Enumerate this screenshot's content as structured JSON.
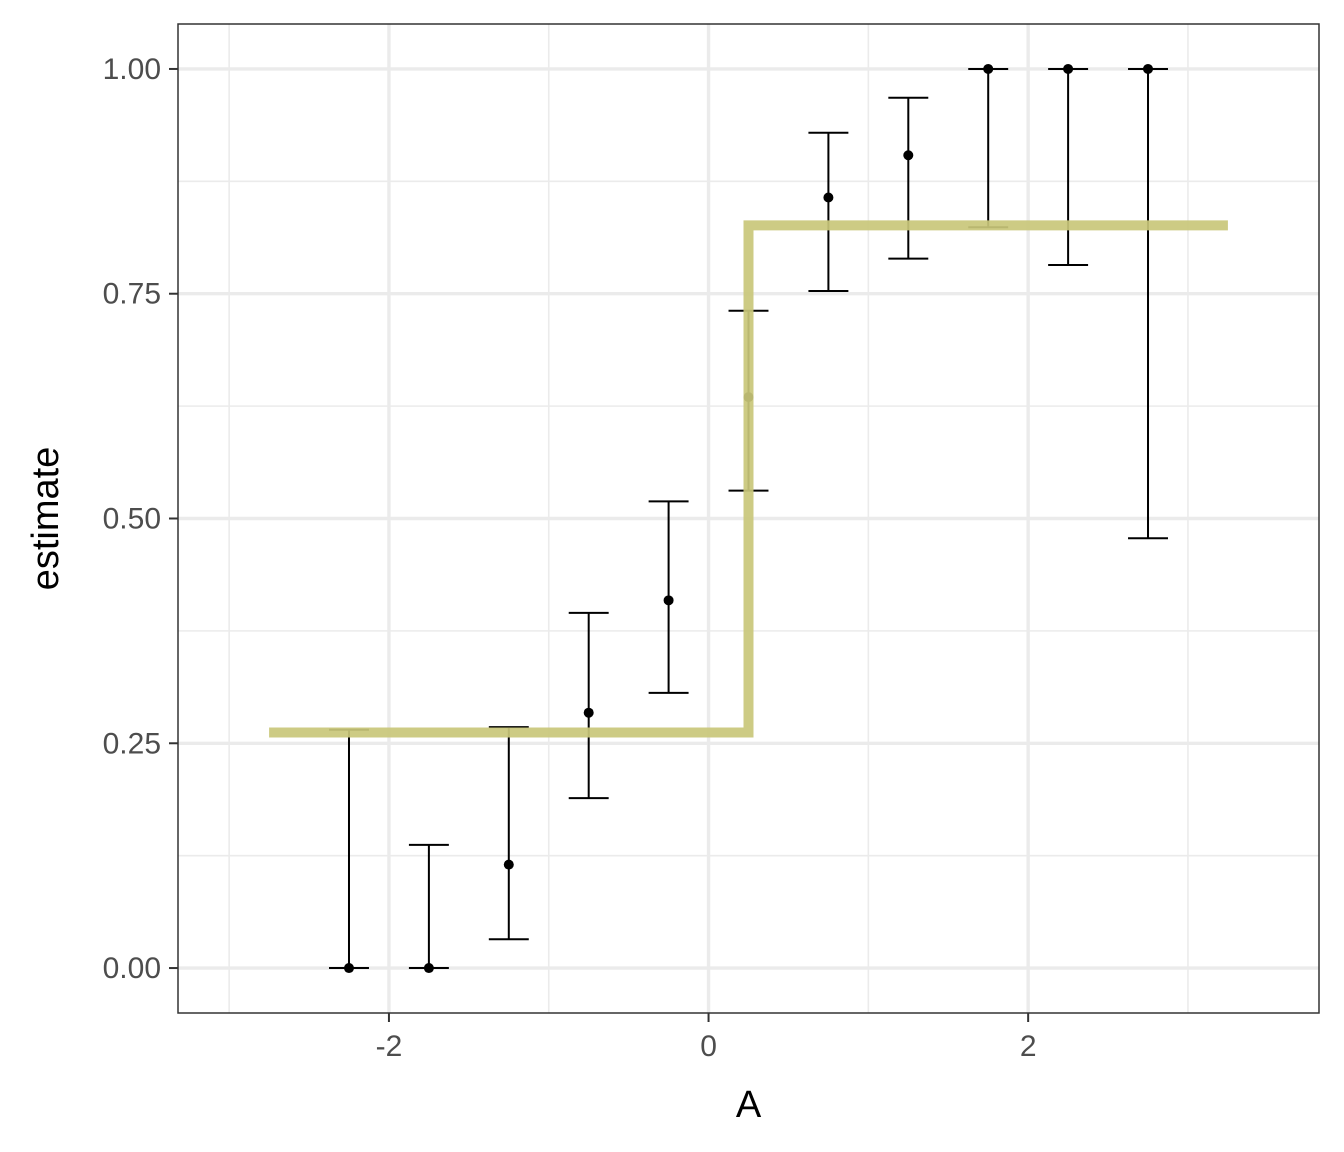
{
  "chart_data": {
    "type": "scatter",
    "title": "",
    "xlabel": "A",
    "ylabel": "estimate",
    "xlim": [
      -3.32,
      3.82
    ],
    "ylim": [
      -0.05,
      1.05
    ],
    "x_ticks": [
      -2,
      0,
      2
    ],
    "x_tick_labels": [
      "-2",
      "0",
      "2"
    ],
    "x_minor_ticks": [
      -3,
      -1,
      1,
      3
    ],
    "y_ticks": [
      0,
      0.25,
      0.5,
      0.75,
      1.0
    ],
    "y_tick_labels": [
      "0.00",
      "0.25",
      "0.50",
      "0.75",
      "1.00"
    ],
    "y_minor_ticks": [
      0.125,
      0.375,
      0.625,
      0.875
    ],
    "grid": true,
    "theme": "bw",
    "points": [
      {
        "x": -2.25,
        "y": 0.0,
        "ymin": 0.0,
        "ymax": 0.265
      },
      {
        "x": -1.75,
        "y": 0.0,
        "ymin": 0.0,
        "ymax": 0.137
      },
      {
        "x": -1.25,
        "y": 0.115,
        "ymin": 0.032,
        "ymax": 0.268
      },
      {
        "x": -0.75,
        "y": 0.284,
        "ymin": 0.189,
        "ymax": 0.395
      },
      {
        "x": -0.25,
        "y": 0.409,
        "ymin": 0.306,
        "ymax": 0.519
      },
      {
        "x": 0.25,
        "y": 0.635,
        "ymin": 0.531,
        "ymax": 0.731
      },
      {
        "x": 0.75,
        "y": 0.857,
        "ymin": 0.753,
        "ymax": 0.929
      },
      {
        "x": 1.25,
        "y": 0.904,
        "ymin": 0.789,
        "ymax": 0.968
      },
      {
        "x": 1.75,
        "y": 1.0,
        "ymin": 0.824,
        "ymax": 1.0
      },
      {
        "x": 2.25,
        "y": 1.0,
        "ymin": 0.782,
        "ymax": 1.0
      },
      {
        "x": 2.75,
        "y": 1.0,
        "ymin": 0.478,
        "ymax": 1.0
      }
    ],
    "step_line": {
      "color": "#c9c77a",
      "x_start": -2.75,
      "x_break": 0.25,
      "x_end": 3.25,
      "y_low": 0.262,
      "y_high": 0.826
    },
    "colors": {
      "points": "#000000",
      "errorbars": "#000000",
      "grid_major": "#ebebeb",
      "grid_minor": "#ebebeb",
      "panel_border": "#333333",
      "tick_label": "#4d4d4d",
      "axis_title": "#000000"
    }
  }
}
